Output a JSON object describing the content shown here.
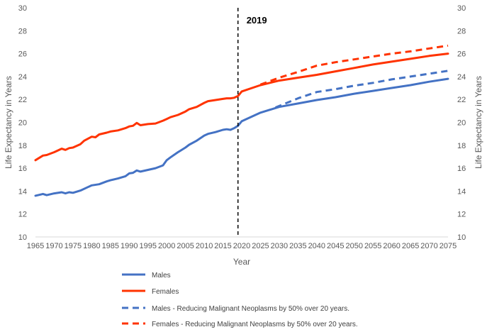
{
  "chart_data": {
    "type": "line",
    "title": "",
    "xlabel": "Year",
    "ylabel": "Life Expectancy in Years",
    "ylabel_right": "Life Expectancy in Years",
    "xlim": [
      1965,
      2075
    ],
    "ylim": [
      10,
      30
    ],
    "x_ticks": [
      1965,
      1970,
      1975,
      1980,
      1985,
      1990,
      1995,
      2000,
      2005,
      2010,
      2015,
      2020,
      2025,
      2030,
      2035,
      2040,
      2045,
      2050,
      2055,
      2060,
      2065,
      2070,
      2075
    ],
    "y_ticks": [
      10,
      12,
      14,
      16,
      18,
      20,
      22,
      24,
      26,
      28,
      30
    ],
    "grid": false,
    "legend_position": "bottom",
    "annotation": {
      "x": 2019,
      "label": "2019",
      "style": "dashed vertical line"
    },
    "series": [
      {
        "name": "Males",
        "color": "#4472C4",
        "dash": false,
        "x": [
          1965,
          1967,
          1968,
          1970,
          1972,
          1973,
          1974,
          1975,
          1977,
          1979,
          1980,
          1982,
          1984,
          1985,
          1987,
          1989,
          1990,
          1991,
          1992,
          1993,
          1995,
          1997,
          1999,
          2000,
          2001,
          2003,
          2005,
          2006,
          2008,
          2010,
          2011,
          2013,
          2015,
          2016,
          2017,
          2018,
          2019,
          2020,
          2025,
          2030,
          2035,
          2040,
          2045,
          2050,
          2055,
          2060,
          2065,
          2070,
          2075
        ],
        "values": [
          13.6,
          13.75,
          13.65,
          13.8,
          13.9,
          13.8,
          13.9,
          13.85,
          14.05,
          14.35,
          14.5,
          14.6,
          14.85,
          14.95,
          15.1,
          15.3,
          15.55,
          15.6,
          15.8,
          15.7,
          15.85,
          16.0,
          16.25,
          16.7,
          16.95,
          17.4,
          17.8,
          18.05,
          18.4,
          18.85,
          19.0,
          19.15,
          19.35,
          19.4,
          19.35,
          19.5,
          19.7,
          20.1,
          20.85,
          21.35,
          21.65,
          21.95,
          22.2,
          22.5,
          22.75,
          23.0,
          23.25,
          23.55,
          23.8
        ]
      },
      {
        "name": "Females",
        "color": "#FF3300",
        "dash": false,
        "x": [
          1965,
          1967,
          1968,
          1970,
          1972,
          1973,
          1974,
          1975,
          1977,
          1978,
          1980,
          1981,
          1982,
          1984,
          1985,
          1987,
          1989,
          1990,
          1991,
          1992,
          1993,
          1995,
          1997,
          1999,
          2000,
          2001,
          2003,
          2005,
          2006,
          2008,
          2010,
          2011,
          2013,
          2015,
          2016,
          2017,
          2018,
          2019,
          2020,
          2025,
          2030,
          2035,
          2040,
          2045,
          2050,
          2055,
          2060,
          2065,
          2070,
          2075
        ],
        "values": [
          16.7,
          17.1,
          17.15,
          17.4,
          17.7,
          17.6,
          17.75,
          17.8,
          18.1,
          18.4,
          18.75,
          18.7,
          18.95,
          19.1,
          19.2,
          19.3,
          19.5,
          19.65,
          19.7,
          19.95,
          19.75,
          19.85,
          19.9,
          20.15,
          20.3,
          20.45,
          20.65,
          20.95,
          21.15,
          21.35,
          21.7,
          21.85,
          21.95,
          22.05,
          22.1,
          22.1,
          22.15,
          22.3,
          22.7,
          23.25,
          23.65,
          23.9,
          24.15,
          24.45,
          24.75,
          25.05,
          25.3,
          25.55,
          25.8,
          26.0
        ]
      },
      {
        "name": "Males - Reducing Malignant Neoplasms by 50% over 20 years.",
        "color": "#4472C4",
        "dash": true,
        "x": [
          2029,
          2035,
          2040,
          2045,
          2050,
          2055,
          2060,
          2065,
          2070,
          2075
        ],
        "values": [
          21.3,
          22.1,
          22.65,
          22.9,
          23.2,
          23.45,
          23.75,
          24.0,
          24.25,
          24.5
        ]
      },
      {
        "name": "Females -  Reducing Malignant Neoplasms by 50% over 20 years.",
        "color": "#FF3300",
        "dash": true,
        "x": [
          2025,
          2030,
          2035,
          2040,
          2045,
          2050,
          2055,
          2060,
          2065,
          2070,
          2075
        ],
        "values": [
          23.3,
          23.9,
          24.4,
          24.95,
          25.25,
          25.5,
          25.75,
          26.0,
          26.2,
          26.45,
          26.7
        ]
      }
    ]
  }
}
